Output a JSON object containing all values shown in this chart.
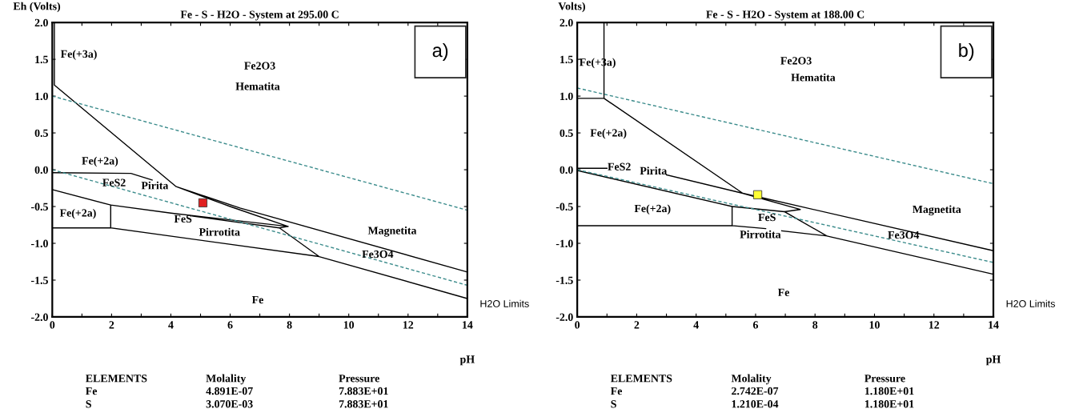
{
  "chart_data": [
    {
      "type": "line",
      "title": "Fe - S - H2O - System at 295.00 C",
      "xlabel": "pH",
      "ylabel": "Eh (Volts)",
      "xlim": [
        0,
        14
      ],
      "ylim": [
        -2.0,
        2.0
      ],
      "xticks": [
        0,
        {
          "value": 1,
          "label": null
        },
        2,
        {
          "value": 3,
          "label": null
        },
        4,
        {
          "value": 5,
          "label": null
        },
        6,
        {
          "value": 7,
          "label": null
        },
        8,
        {
          "value": 9,
          "label": null
        },
        10,
        {
          "value": 11,
          "label": null
        },
        12,
        {
          "value": 13,
          "label": null
        },
        14
      ],
      "yticks": [
        {
          "value": -2.0,
          "label": "-2.0"
        },
        {
          "value": -1.5,
          "label": "-1.5"
        },
        {
          "value": -1.0,
          "label": "-1.0"
        },
        {
          "value": -0.5,
          "label": "-0.5"
        },
        {
          "value": 0.0,
          "label": "0.0"
        },
        {
          "value": 0.5,
          "label": "0.5"
        },
        {
          "value": 1.0,
          "label": "1.0"
        },
        {
          "value": 1.5,
          "label": "1.5"
        },
        {
          "value": 2.0,
          "label": "2.0"
        }
      ],
      "grid": false,
      "legend": false,
      "series": [
        {
          "x": [
            0.07,
            0.07,
            4.18,
            6.33,
            14.0,
            null,
            4.18,
            6.0,
            7.95,
            null,
            0.0,
            1.97,
            4.0,
            7.95,
            null,
            4.72,
            7.66,
            7.95,
            null,
            7.66,
            9.0,
            null,
            0.0,
            1.97,
            1.97,
            null,
            1.97,
            9.0,
            14.0,
            null,
            0.0,
            2.65,
            3.37
          ],
          "values": [
            2.0,
            1.15,
            -0.23,
            -0.52,
            -1.39,
            null,
            -0.23,
            -0.5,
            -0.77,
            null,
            -0.27,
            -0.48,
            -0.59,
            -0.77,
            null,
            -0.63,
            -0.79,
            -0.77,
            null,
            -0.79,
            -1.18,
            null,
            -0.79,
            -0.79,
            -0.48,
            null,
            -0.79,
            -1.18,
            -1.75,
            null,
            -0.04,
            -0.05,
            -0.14
          ],
          "color": "#000000"
        },
        {
          "x": [
            0.0,
            14.0
          ],
          "values": [
            1.0,
            -0.55
          ],
          "color": "#3c8c8c",
          "line_style": "dashed"
        },
        {
          "x": [
            0.0,
            14.0
          ],
          "values": [
            0.0,
            -1.57
          ],
          "color": "#3c8c8c",
          "line_style": "dashed"
        },
        {
          "type": "scatter",
          "x": [
            5.08
          ],
          "values": [
            -0.45
          ],
          "color": "#e02020",
          "marker": "square"
        }
      ],
      "annotations": [
        "Fe(+3a)",
        "Fe2O3",
        "Hematita",
        "Fe(+2a)",
        "FeS2",
        "Pirita",
        "Fe(+2a)",
        "FeS",
        "Pirrotita",
        "Fe",
        "Magnetita",
        "Fe3O4",
        "H2O Limits",
        "a)",
        "ELEMENTS",
        "Molality",
        "Pressure",
        "Fe",
        "4.891E-07",
        "7.883E+01",
        "S",
        "3.070E-03",
        "7.883E+01"
      ]
    },
    {
      "type": "line",
      "title": "Fe - S - H2O - System at 188.00 C",
      "xlabel": "pH",
      "ylabel": "Volts)",
      "xlim": [
        0,
        14
      ],
      "ylim": [
        -2.0,
        2.0
      ],
      "xticks": [
        0,
        {
          "value": 1,
          "label": null
        },
        2,
        {
          "value": 3,
          "label": null
        },
        4,
        {
          "value": 5,
          "label": null
        },
        6,
        {
          "value": 7,
          "label": null
        },
        8,
        {
          "value": 9,
          "label": null
        },
        10,
        {
          "value": 11,
          "label": null
        },
        12,
        {
          "value": 13,
          "label": null
        },
        14
      ],
      "yticks": [
        {
          "value": -2.0,
          "label": "-2.0"
        },
        {
          "value": -1.5,
          "label": "-1.5"
        },
        {
          "value": -1.0,
          "label": "-1.0"
        },
        {
          "value": -0.5,
          "label": "-0.5"
        },
        {
          "value": 0.0,
          "label": "0.0"
        },
        {
          "value": 0.5,
          "label": "0.5"
        },
        {
          "value": 1.0,
          "label": "1.0"
        },
        {
          "value": 1.5,
          "label": "1.5"
        },
        {
          "value": 2.0,
          "label": "2.0"
        }
      ],
      "grid": false,
      "legend": false,
      "series": [
        {
          "x": [
            0.9,
            0.9,
            null,
            0.0,
            0.9,
            5.57,
            14.0,
            null,
            0.0,
            1.0,
            null,
            3.0,
            5.57,
            7.5,
            null,
            0.0,
            5.21,
            6.97,
            7.5,
            null,
            6.97,
            8.4,
            14.0,
            null,
            0.0,
            5.21,
            5.21,
            null,
            5.21,
            6.34,
            null,
            6.88,
            8.4
          ],
          "values": [
            2.0,
            0.97,
            null,
            0.97,
            0.97,
            -0.32,
            -1.1,
            null,
            0.02,
            0.02,
            null,
            -0.07,
            -0.32,
            -0.54,
            null,
            -0.01,
            -0.5,
            -0.57,
            -0.54,
            null,
            -0.57,
            -0.9,
            -1.42,
            null,
            -0.76,
            -0.76,
            -0.5,
            null,
            -0.76,
            -0.8,
            null,
            -0.83,
            -0.9
          ],
          "color": "#000000"
        },
        {
          "x": [
            0.0,
            14.0
          ],
          "values": [
            1.11,
            -0.19
          ],
          "color": "#3c8c8c",
          "line_style": "dashed"
        },
        {
          "x": [
            0.0,
            14.0
          ],
          "values": [
            0.0,
            -1.26
          ],
          "color": "#3c8c8c",
          "line_style": "dashed"
        },
        {
          "type": "scatter",
          "x": [
            6.07
          ],
          "values": [
            -0.34
          ],
          "color": "#ffff33",
          "marker": "square"
        }
      ],
      "annotations": [
        "Fe(+3a)",
        "Fe2O3",
        "Hematita",
        "Fe(+2a)",
        "FeS2",
        "Pirita",
        "Fe(+2a)",
        "FeS",
        "Pirrotita",
        "Fe",
        "Magnetita",
        "Fe3O4",
        "H2O Limits",
        "b)",
        "ELEMENTS",
        "Molality",
        "Pressure",
        "Fe",
        "2.742E-07",
        "1.180E+01",
        "S",
        "1.210E-04",
        "1.180E+01"
      ]
    }
  ]
}
